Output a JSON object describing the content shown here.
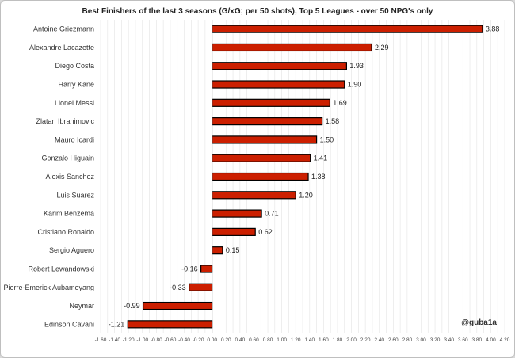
{
  "chart_data": {
    "type": "bar",
    "orientation": "horizontal",
    "title": "Best Finishers of the last 3 seasons (G/xG; per 50 shots), Top 5 Leagues - over 50 NPG's only",
    "credit": "@guba1a",
    "categories": [
      "Antoine Griezmann",
      "Alexandre Lacazette",
      "Diego Costa",
      "Harry Kane",
      "Lionel Messi",
      "Zlatan Ibrahimovic",
      "Mauro Icardi",
      "Gonzalo Higuain",
      "Alexis Sanchez",
      "Luis Suarez",
      "Karim Benzema",
      "Cristiano Ronaldo",
      "Sergio Aguero",
      "Robert Lewandowski",
      "Pierre-Emerick Aubameyang",
      "Neymar",
      "Edinson Cavani"
    ],
    "values": [
      3.88,
      2.29,
      1.93,
      1.9,
      1.69,
      1.58,
      1.5,
      1.41,
      1.38,
      1.2,
      0.71,
      0.62,
      0.15,
      -0.16,
      -0.33,
      -0.99,
      -1.21
    ],
    "value_labels": [
      "3.88",
      "2.29",
      "1.93",
      "1.90",
      "1.69",
      "1.58",
      "1.50",
      "1.41",
      "1.38",
      "1.20",
      "0.71",
      "0.62",
      "0.15",
      "-0.16",
      "-0.33",
      "-0.99",
      "-1.21"
    ],
    "xlim": [
      -1.6,
      4.2
    ],
    "xticks": [
      "-1.60",
      "-1.40",
      "-1.20",
      "-1.00",
      "-0.80",
      "-0.60",
      "-0.40",
      "-0.20",
      "0.00",
      "0.20",
      "0.40",
      "0.60",
      "0.80",
      "1.00",
      "1.20",
      "1.40",
      "1.60",
      "1.80",
      "2.00",
      "2.20",
      "2.40",
      "2.60",
      "2.80",
      "3.00",
      "3.20",
      "3.40",
      "3.60",
      "3.80",
      "4.00",
      "4.20"
    ],
    "bar_color": "#cc1f00",
    "bar_edge": "#000000",
    "grid": true
  }
}
